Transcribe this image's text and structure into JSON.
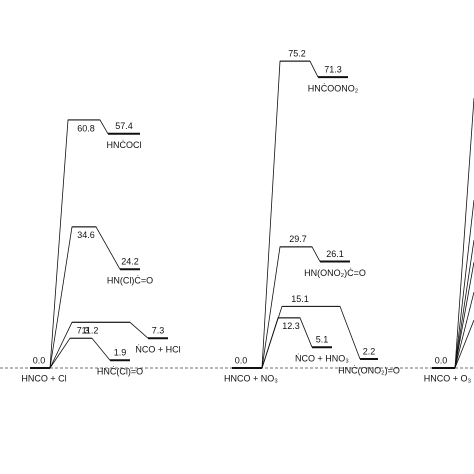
{
  "panels": [
    {
      "reactant": "HNCO + Cl",
      "reactant_energy": "0.0",
      "paths": [
        {
          "ts": "60.8",
          "product": "57.4",
          "product_name": "HNĊOCl"
        },
        {
          "ts": "34.6",
          "product": "24.2",
          "product_name": "HN(Cl)Ċ=O"
        },
        {
          "ts": "11.2",
          "product": "7.3",
          "product_name": "ṄCO + HCl"
        },
        {
          "ts": "7.3",
          "product": "1.9",
          "product_name": "HNĊ(Cl)=O"
        }
      ]
    },
    {
      "reactant": "HNCO + NO₃",
      "reactant_energy": "0.0",
      "paths": [
        {
          "ts": "75.2",
          "product": "71.3",
          "product_name": "HNĊOONO₂"
        },
        {
          "ts": "29.7",
          "product": "26.1",
          "product_name": "HN(ONO₂)Ċ=O"
        },
        {
          "ts": "12.3",
          "product": "5.1",
          "product_name": "ṄCO + HNO₃"
        },
        {
          "ts": "15.1",
          "product": "2.2",
          "product_name": "HNĊ(ONO₂)=O"
        }
      ]
    },
    {
      "reactant": "HNCO + O₃",
      "reactant_energy": "0.0",
      "paths": []
    }
  ]
}
